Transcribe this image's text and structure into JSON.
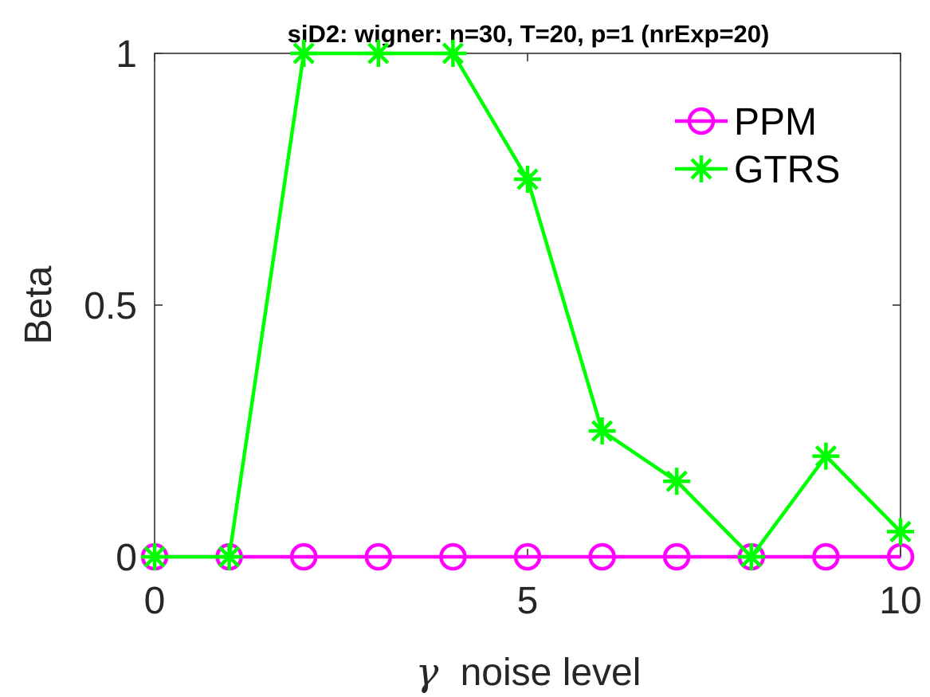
{
  "chart_data": {
    "type": "line",
    "title": "siD2: wigner: n=30, T=20, p=1 (nrExp=20)",
    "xlabel_symbol": "γ",
    "xlabel": "noise level",
    "ylabel": "Beta",
    "xlim": [
      0,
      10
    ],
    "ylim": [
      0,
      1
    ],
    "xticks": [
      0,
      5,
      10
    ],
    "xtick_labels": [
      "0",
      "5",
      "10"
    ],
    "yticks": [
      0,
      0.5,
      1
    ],
    "ytick_labels": [
      "0",
      "0.5",
      "1"
    ],
    "grid": false,
    "legend_position": "top-right",
    "x": [
      0,
      1,
      2,
      3,
      4,
      5,
      6,
      7,
      8,
      9,
      10
    ],
    "series": [
      {
        "name": "PPM",
        "color": "#ff00ff",
        "marker": "circle",
        "values": [
          0,
          0,
          0,
          0,
          0,
          0,
          0,
          0,
          0,
          0,
          0
        ]
      },
      {
        "name": "GTRS",
        "color": "#00ff00",
        "marker": "asterisk",
        "values": [
          0,
          0,
          1,
          1,
          1,
          0.75,
          0.25,
          0.15,
          0,
          0.2,
          0.05
        ]
      }
    ]
  }
}
